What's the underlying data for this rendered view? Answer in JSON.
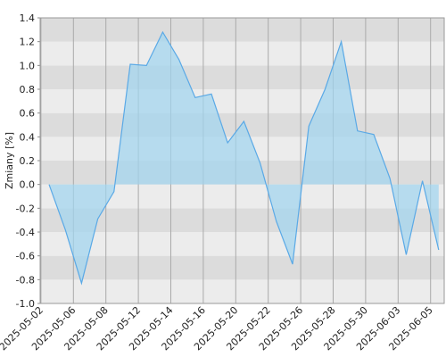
{
  "chart_data": {
    "type": "area",
    "y_label": "Zmiany [%]",
    "x": [
      "2025-05-02",
      null,
      "2025-05-06",
      null,
      "2025-05-08",
      null,
      "2025-05-12",
      null,
      "2025-05-14",
      null,
      "2025-05-16",
      null,
      "2025-05-20",
      null,
      "2025-05-22",
      null,
      "2025-05-26",
      null,
      "2025-05-28",
      null,
      "2025-05-30",
      null,
      "2025-06-03",
      null,
      "2025-06-05"
    ],
    "values": [
      0.0,
      -0.38,
      -0.83,
      -0.29,
      -0.06,
      1.01,
      1.0,
      1.28,
      1.05,
      0.73,
      0.76,
      0.35,
      0.53,
      0.18,
      -0.31,
      -0.67,
      0.49,
      0.8,
      1.2,
      0.45,
      0.42,
      0.05,
      -0.59,
      0.03,
      -0.55
    ],
    "color": "#5aa9e6",
    "ylim": [
      -1.0,
      1.4
    ],
    "yticks": [
      {
        "value": -1.0,
        "label": "-1.0"
      },
      -0.8,
      -0.6,
      -0.4,
      -0.2,
      {
        "value": 0,
        "label": "0.0"
      },
      0.2,
      0.4,
      0.6,
      0.8,
      {
        "value": 1.0,
        "label": "1.0"
      },
      1.2,
      1.4
    ],
    "grid": true
  }
}
